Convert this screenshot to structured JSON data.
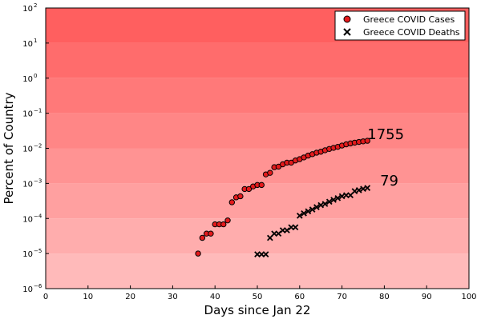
{
  "chart_data": {
    "type": "scatter",
    "title": "",
    "xlabel": "Days since Jan 22",
    "ylabel": "Percent of Country",
    "xlim": [
      0,
      100
    ],
    "ylim": [
      1e-06,
      100
    ],
    "yscale": "log",
    "x_ticks": [
      0,
      10,
      20,
      30,
      40,
      50,
      60,
      70,
      80,
      90,
      100
    ],
    "y_ticks": [
      {
        "value": 1e-06,
        "base": "10",
        "exp": "−6"
      },
      {
        "value": 1e-05,
        "base": "10",
        "exp": "−5"
      },
      {
        "value": 0.0001,
        "base": "10",
        "exp": "−4"
      },
      {
        "value": 0.001,
        "base": "10",
        "exp": "−3"
      },
      {
        "value": 0.01,
        "base": "10",
        "exp": "−2"
      },
      {
        "value": 0.1,
        "base": "10",
        "exp": "−1"
      },
      {
        "value": 1,
        "base": "10",
        "exp": "0"
      },
      {
        "value": 10,
        "base": "10",
        "exp": "1"
      },
      {
        "value": 100,
        "base": "10",
        "exp": "2"
      }
    ],
    "grid": false,
    "background": "red gradient bands by decade, darker at top",
    "legend_position": "top-right",
    "series": [
      {
        "name": "Greece COVID Cases",
        "marker": "circle",
        "color": "#e41a1c",
        "x": [
          36,
          37,
          38,
          39,
          40,
          41,
          42,
          43,
          44,
          45,
          46,
          47,
          48,
          49,
          50,
          51,
          52,
          53,
          54,
          55,
          56,
          57,
          58,
          59,
          60,
          61,
          62,
          63,
          64,
          65,
          66,
          67,
          68,
          69,
          70,
          71,
          72,
          73,
          74,
          75,
          76
        ],
        "y": [
          1e-05,
          2.8e-05,
          3.7e-05,
          3.7e-05,
          6.8e-05,
          6.8e-05,
          6.8e-05,
          8.8e-05,
          0.00029,
          0.0004,
          0.00043,
          0.00069,
          0.00069,
          0.00082,
          0.0009,
          0.0009,
          0.0018,
          0.002,
          0.0029,
          0.003,
          0.0035,
          0.0039,
          0.0039,
          0.0045,
          0.0049,
          0.0055,
          0.0062,
          0.0068,
          0.0075,
          0.008,
          0.0088,
          0.0096,
          0.0103,
          0.011,
          0.012,
          0.013,
          0.0138,
          0.0145,
          0.0152,
          0.0158,
          0.0164
        ]
      },
      {
        "name": "Greece COVID Deaths",
        "marker": "x",
        "color": "#000000",
        "x": [
          50,
          51,
          52,
          53,
          54,
          55,
          56,
          57,
          58,
          59,
          60,
          61,
          62,
          63,
          64,
          65,
          66,
          67,
          68,
          69,
          70,
          71,
          72,
          73,
          74,
          75,
          76
        ],
        "y": [
          9.5e-06,
          9.5e-06,
          9.5e-06,
          2.8e-05,
          3.7e-05,
          3.7e-05,
          4.6e-05,
          4.6e-05,
          5.6e-05,
          5.6e-05,
          0.00012,
          0.00014,
          0.00016,
          0.00018,
          0.00021,
          0.00024,
          0.00026,
          0.0003,
          0.00034,
          0.00038,
          0.00043,
          0.00046,
          0.00046,
          0.0006,
          0.00064,
          0.0007,
          0.00074
        ]
      }
    ],
    "annotations": [
      {
        "text": "1755",
        "x": 76,
        "y": 0.025
      },
      {
        "text": "79",
        "x": 79,
        "y": 0.0012
      }
    ]
  }
}
